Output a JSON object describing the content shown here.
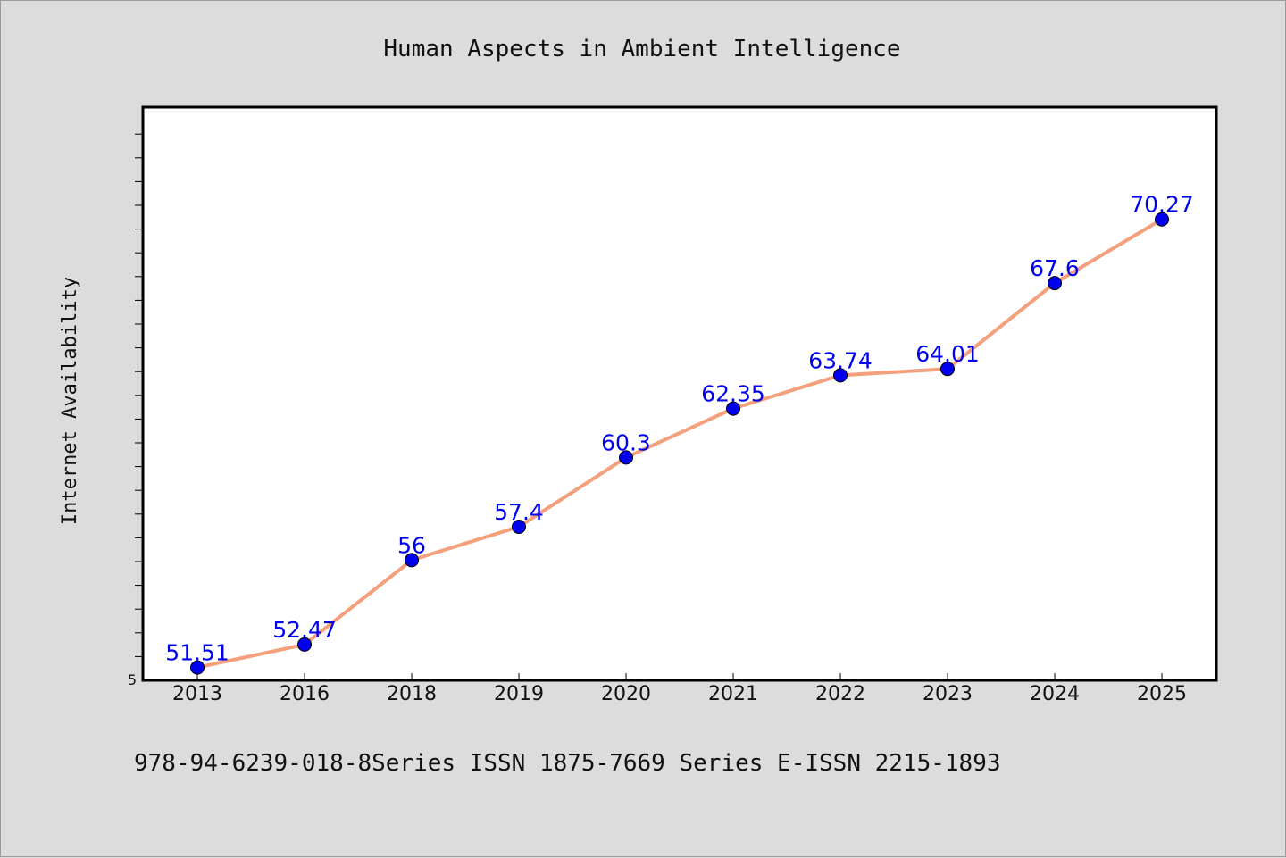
{
  "chart_data": {
    "type": "line",
    "title": "Human Aspects in Ambient Intelligence",
    "ylabel": "Internet Availability",
    "xlabel": "",
    "categories": [
      "2013",
      "2016",
      "2018",
      "2019",
      "2020",
      "2021",
      "2022",
      "2023",
      "2024",
      "2025"
    ],
    "series": [
      {
        "values": [
          51.51,
          52.47,
          56,
          57.4,
          60.3,
          62.35,
          63.74,
          64.01,
          67.6,
          70.27
        ],
        "labels": [
          "51.51",
          "52.47",
          "56",
          "57.4",
          "60.3",
          "62.35",
          "63.74",
          "64.01",
          "67.6",
          "70.27"
        ]
      }
    ],
    "y_tick_label": "5",
    "ylim": [
      50.97,
      74.97
    ],
    "grid": false,
    "line_color": "#f4a07c",
    "marker_color": "#0000ee",
    "label_color": "#0000ee"
  },
  "footer": {
    "text": "978-94-6239-018-8Series ISSN 1875-7669 Series E-ISSN 2215-1893"
  }
}
